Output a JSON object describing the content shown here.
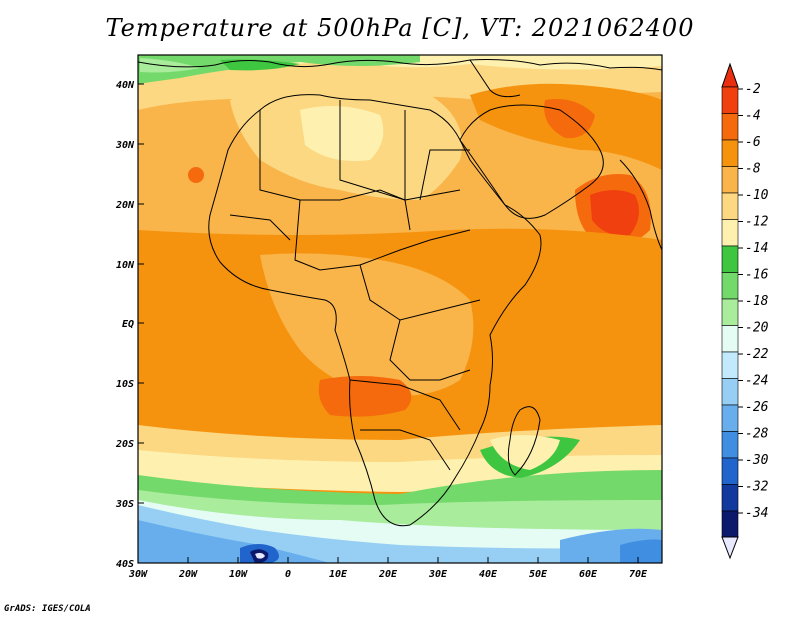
{
  "title": "Temperature at 500hPa [C], VT: 2021062400",
  "footer": "GrADS: IGES/COLA",
  "map": {
    "variable": "Temperature at 500hPa",
    "units": "C",
    "valid_time": "2021062400",
    "lon_range": [
      -30,
      75
    ],
    "lat_range": [
      -40,
      45
    ],
    "lat_ticks": [
      "40N",
      "30N",
      "20N",
      "10N",
      "EQ",
      "10S",
      "20S",
      "30S",
      "40S"
    ],
    "lon_ticks": [
      "30W",
      "20W",
      "10W",
      "0",
      "10E",
      "20E",
      "30E",
      "40E",
      "50E",
      "60E",
      "70E"
    ],
    "features": [
      "africa-coastline",
      "country-borders",
      "madagascar",
      "arabian-peninsula"
    ]
  },
  "colorbar": {
    "labels": [
      "-2",
      "-4",
      "-6",
      "-8",
      "-10",
      "-12",
      "-14",
      "-16",
      "-18",
      "-20",
      "-22",
      "-24",
      "-26",
      "-28",
      "-30",
      "-32",
      "-34"
    ],
    "colors": [
      "#f04010",
      "#f46a0c",
      "#f6930e",
      "#f9b44a",
      "#fcd882",
      "#fef1b0",
      "#3ec640",
      "#73d96a",
      "#a8ec9c",
      "#e4fcf4",
      "#c3eafc",
      "#97cff4",
      "#68aeec",
      "#3f8ee2",
      "#2064cc",
      "#123a9e",
      "#0b1a6a"
    ],
    "top_color": "#e83010",
    "bottom_color": "#e8e8ff"
  }
}
